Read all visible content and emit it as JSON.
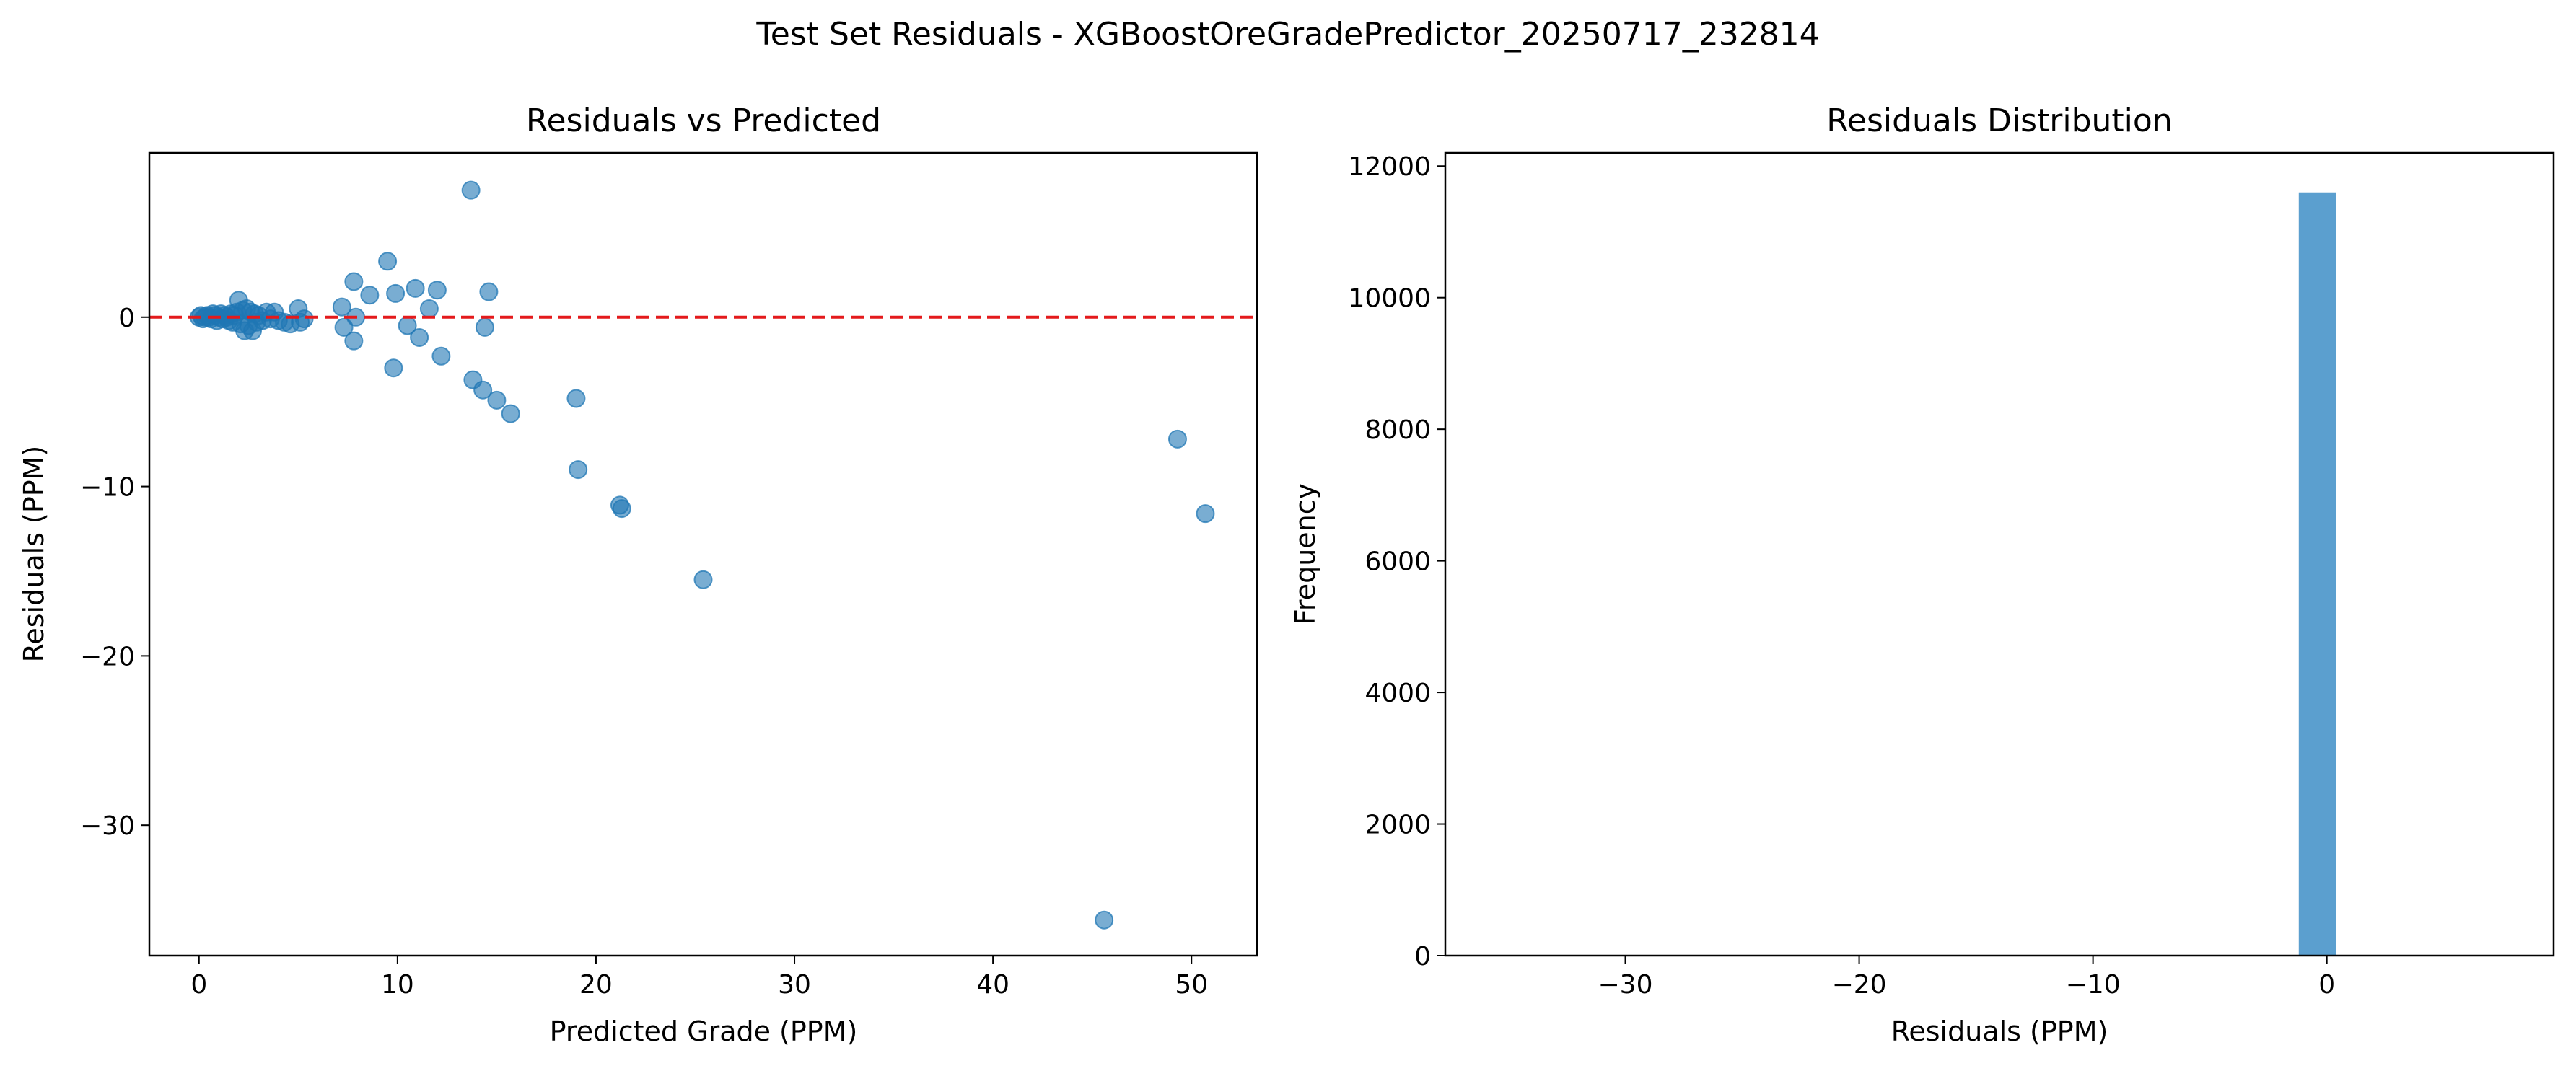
{
  "figure": {
    "suptitle": "Test Set Residuals - XGBoostOreGradePredictor_20250717_232814"
  },
  "colors": {
    "points": "#1f77b4",
    "zero_line": "#e41a1c",
    "hist_bar": "#5b9fcf",
    "axes": "#000000"
  },
  "chart_data": [
    {
      "type": "scatter",
      "title": "Residuals vs Predicted",
      "xlabel": "Predicted Grade (PPM)",
      "ylabel": "Residuals (PPM)",
      "xlim": [
        -2.5,
        53.3
      ],
      "ylim": [
        -37.7,
        9.7
      ],
      "xticks": [
        0,
        10,
        20,
        30,
        40,
        50
      ],
      "yticks": [
        -30,
        -20,
        -10,
        0
      ],
      "tick_labels_x": [
        "0",
        "10",
        "20",
        "30",
        "40",
        "50"
      ],
      "tick_labels_y": [
        "−30",
        "−20",
        "−10",
        "0"
      ],
      "reference_line": {
        "y": 0,
        "style": "dashed"
      },
      "points": [
        {
          "x": 0.0,
          "y": 0.0
        },
        {
          "x": 0.1,
          "y": 0.1
        },
        {
          "x": 0.2,
          "y": -0.1
        },
        {
          "x": 0.3,
          "y": 0.0
        },
        {
          "x": 0.4,
          "y": 0.1
        },
        {
          "x": 0.5,
          "y": 0.0
        },
        {
          "x": 0.6,
          "y": -0.1
        },
        {
          "x": 0.7,
          "y": 0.2
        },
        {
          "x": 0.8,
          "y": 0.1
        },
        {
          "x": 0.9,
          "y": -0.2
        },
        {
          "x": 1.0,
          "y": 0.0
        },
        {
          "x": 1.1,
          "y": 0.2
        },
        {
          "x": 1.2,
          "y": -0.1
        },
        {
          "x": 1.3,
          "y": 0.1
        },
        {
          "x": 1.4,
          "y": 0.0
        },
        {
          "x": 1.5,
          "y": -0.2
        },
        {
          "x": 1.6,
          "y": 0.2
        },
        {
          "x": 1.7,
          "y": -0.3
        },
        {
          "x": 1.8,
          "y": 0.1
        },
        {
          "x": 1.9,
          "y": 0.3
        },
        {
          "x": 2.0,
          "y": 1.0
        },
        {
          "x": 2.1,
          "y": -0.4
        },
        {
          "x": 2.2,
          "y": 0.4
        },
        {
          "x": 2.3,
          "y": -0.8
        },
        {
          "x": 2.4,
          "y": 0.5
        },
        {
          "x": 2.5,
          "y": -0.5
        },
        {
          "x": 2.6,
          "y": 0.3
        },
        {
          "x": 2.7,
          "y": -0.8
        },
        {
          "x": 2.8,
          "y": 0.2
        },
        {
          "x": 2.9,
          "y": -0.3
        },
        {
          "x": 3.0,
          "y": 0.1
        },
        {
          "x": 3.2,
          "y": -0.2
        },
        {
          "x": 3.4,
          "y": 0.3
        },
        {
          "x": 3.6,
          "y": -0.1
        },
        {
          "x": 3.8,
          "y": 0.3
        },
        {
          "x": 4.0,
          "y": -0.2
        },
        {
          "x": 4.3,
          "y": -0.3
        },
        {
          "x": 4.6,
          "y": -0.4
        },
        {
          "x": 5.0,
          "y": 0.5
        },
        {
          "x": 5.1,
          "y": -0.3
        },
        {
          "x": 5.3,
          "y": -0.1
        },
        {
          "x": 7.2,
          "y": 0.6
        },
        {
          "x": 7.3,
          "y": -0.6
        },
        {
          "x": 7.8,
          "y": 2.1
        },
        {
          "x": 7.9,
          "y": 0.0
        },
        {
          "x": 7.8,
          "y": -1.4
        },
        {
          "x": 8.6,
          "y": 1.3
        },
        {
          "x": 9.5,
          "y": 3.3
        },
        {
          "x": 9.8,
          "y": -3.0
        },
        {
          "x": 9.9,
          "y": 1.4
        },
        {
          "x": 10.5,
          "y": -0.5
        },
        {
          "x": 10.9,
          "y": 1.7
        },
        {
          "x": 11.1,
          "y": -1.2
        },
        {
          "x": 11.6,
          "y": 0.5
        },
        {
          "x": 12.0,
          "y": 1.6
        },
        {
          "x": 12.2,
          "y": -2.3
        },
        {
          "x": 13.7,
          "y": 7.5
        },
        {
          "x": 13.8,
          "y": -3.7
        },
        {
          "x": 14.3,
          "y": -4.3
        },
        {
          "x": 14.4,
          "y": -0.6
        },
        {
          "x": 14.6,
          "y": 1.5
        },
        {
          "x": 15.0,
          "y": -4.9
        },
        {
          "x": 15.7,
          "y": -5.7
        },
        {
          "x": 19.0,
          "y": -4.8
        },
        {
          "x": 19.1,
          "y": -9.0
        },
        {
          "x": 21.2,
          "y": -11.1
        },
        {
          "x": 21.3,
          "y": -11.3
        },
        {
          "x": 25.4,
          "y": -15.5
        },
        {
          "x": 45.6,
          "y": -35.6
        },
        {
          "x": 49.3,
          "y": -7.2
        },
        {
          "x": 50.7,
          "y": -11.6
        }
      ]
    },
    {
      "type": "bar",
      "title": "Residuals Distribution",
      "xlabel": "Residuals (PPM)",
      "ylabel": "Frequency",
      "xlim": [
        -37.7,
        9.7
      ],
      "ylim": [
        0,
        12200
      ],
      "xticks": [
        -30,
        -20,
        -10,
        0
      ],
      "yticks": [
        0,
        2000,
        4000,
        6000,
        8000,
        10000,
        12000
      ],
      "tick_labels_x": [
        "−30",
        "−20",
        "−10",
        "0"
      ],
      "tick_labels_y": [
        "0",
        "2000",
        "4000",
        "6000",
        "8000",
        "10000",
        "12000"
      ],
      "bins": [
        {
          "x0": -1.2,
          "x1": 0.4,
          "value": 11600
        }
      ]
    }
  ]
}
